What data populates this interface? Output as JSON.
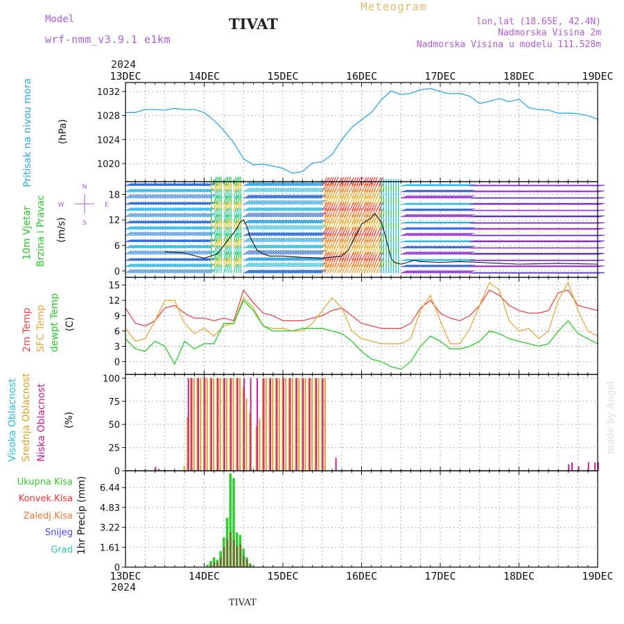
{
  "header": {
    "model_label": "Model",
    "model_name": "wrf-nmm_v3.9.1 e1km",
    "station_title": "TIVAT",
    "chart_kind": "Meteogram",
    "location": "lon,lat (18.65E, 42.4N)",
    "altitude": "Nadmorska Visina 2m",
    "model_altitude": "Nadmorska Visina u modelu 111.528m",
    "year": "2024",
    "footer": "TIVAT",
    "signature": "made by Angel"
  },
  "colors": {
    "pressure": "#29a9e6",
    "temp2m": "#ee4444",
    "sfc_temp": "#e8a838",
    "dewpoint": "#22cc22",
    "high_cloud": "#22c2e6",
    "mid_cloud": "#e0a020",
    "low_cloud": "#cc1a8c",
    "total_precip": "#33cc33",
    "convective": "#ee3333",
    "frozen": "#ee7733",
    "snow": "#4444ee",
    "graupel": "#22ccaa",
    "wind_label": "#22cc22",
    "wind_speed_line": "#111111"
  },
  "chart_data": [
    {
      "type": "line",
      "panel": "pressure",
      "ylabel_lines": [
        "Pritisak na nivou mora",
        "(hPa)"
      ],
      "x_ticks": [
        "13DEC",
        "14DEC",
        "15DEC",
        "16DEC",
        "17DEC",
        "18DEC",
        "19DEC"
      ],
      "xlim": [
        0,
        144
      ],
      "ylim": [
        1017,
        1033.5
      ],
      "yticks": [
        1020,
        1024,
        1028,
        1032
      ],
      "grid": true,
      "series": [
        {
          "x": [
            0,
            3,
            6,
            9,
            12,
            15,
            18,
            21,
            24,
            27,
            30,
            33,
            36,
            39,
            42,
            45,
            48,
            51,
            54,
            57,
            60,
            63,
            66,
            69,
            72,
            75,
            78,
            81,
            84,
            87,
            90,
            93,
            96,
            99,
            102,
            105,
            108,
            111,
            114,
            117,
            120,
            123,
            126,
            129,
            132,
            135,
            138,
            141,
            144
          ],
          "values": [
            1028.5,
            1028.5,
            1029.0,
            1029.0,
            1028.9,
            1029.2,
            1029.0,
            1029.0,
            1028.5,
            1027.2,
            1025.5,
            1023.5,
            1020.8,
            1019.8,
            1019.9,
            1019.6,
            1019.2,
            1018.4,
            1018.7,
            1020.1,
            1020.3,
            1021.5,
            1024.0,
            1026.0,
            1027.3,
            1028.5,
            1030.6,
            1032.1,
            1031.5,
            1031.7,
            1032.3,
            1032.5,
            1032.0,
            1031.6,
            1031.7,
            1031.2,
            1030.0,
            1030.4,
            1030.8,
            1030.3,
            1030.7,
            1029.3,
            1029.0,
            1028.9,
            1028.4,
            1028.4,
            1028.3,
            1028.0,
            1027.4
          ]
        }
      ]
    },
    {
      "type": "line",
      "panel": "wind",
      "ylabel_lines": [
        "10m Vjetar",
        "Brzina i Pravac",
        "(m/s)"
      ],
      "compass": [
        "N",
        "S",
        "W",
        "E"
      ],
      "ylim": [
        -1.5,
        21
      ],
      "yticks": [
        0,
        6,
        12,
        18
      ],
      "grid": true,
      "series": [
        {
          "name": "speed",
          "x": [
            12,
            18,
            24,
            28,
            30,
            32,
            34,
            35,
            36,
            37,
            38,
            40,
            42,
            44,
            48,
            54,
            60,
            66,
            68,
            70,
            72,
            75,
            76,
            78,
            79,
            80,
            81,
            82,
            84,
            86,
            88,
            90,
            96,
            102,
            108,
            114,
            120,
            126,
            132,
            138,
            144
          ],
          "values": [
            4.5,
            4.2,
            3.0,
            4.0,
            6.0,
            8.0,
            10.0,
            11.5,
            12.0,
            10.5,
            8.0,
            5.0,
            4.0,
            3.5,
            3.5,
            3.2,
            3.0,
            3.5,
            5.0,
            8.0,
            11.0,
            12.5,
            13.5,
            11.5,
            9.0,
            6.0,
            3.0,
            2.0,
            1.6,
            2.0,
            2.5,
            2.2,
            2.0,
            2.2,
            2.0,
            1.8,
            1.6,
            1.7,
            1.8,
            1.7,
            1.6
          ]
        }
      ]
    },
    {
      "type": "line",
      "panel": "temperature",
      "ylabel_lines": [
        "2m Temp",
        "SFC Temp",
        "dewpt Temp",
        "(C)"
      ],
      "ylim": [
        -2.5,
        16.5
      ],
      "yticks": [
        0,
        3,
        6,
        9,
        12,
        15
      ],
      "grid": true,
      "series": [
        {
          "name": "2m Temp",
          "x": [
            0,
            3,
            6,
            9,
            12,
            15,
            18,
            21,
            24,
            27,
            30,
            33,
            36,
            39,
            42,
            45,
            48,
            51,
            54,
            57,
            60,
            63,
            66,
            69,
            72,
            75,
            78,
            81,
            84,
            87,
            90,
            93,
            96,
            99,
            102,
            105,
            108,
            111,
            114,
            117,
            120,
            123,
            126,
            129,
            132,
            135,
            138,
            141,
            144
          ],
          "values": [
            10.5,
            7.5,
            7.0,
            8.0,
            10.5,
            11.0,
            9.5,
            8.5,
            8.5,
            8.0,
            8.5,
            8.0,
            14.0,
            11.5,
            9.5,
            9.0,
            8.0,
            8.0,
            8.0,
            8.5,
            9.0,
            10.0,
            10.5,
            9.0,
            7.5,
            7.0,
            6.5,
            6.5,
            6.5,
            7.5,
            10.5,
            12.0,
            9.5,
            8.5,
            8.0,
            9.0,
            11.0,
            14.0,
            13.0,
            11.0,
            10.0,
            9.5,
            9.5,
            10.0,
            13.5,
            14.0,
            11.0,
            10.5,
            10.0
          ]
        },
        {
          "name": "SFC Temp",
          "x": [
            0,
            3,
            6,
            9,
            12,
            15,
            18,
            21,
            24,
            27,
            30,
            33,
            36,
            39,
            42,
            45,
            48,
            51,
            54,
            57,
            60,
            63,
            66,
            69,
            72,
            75,
            78,
            81,
            84,
            87,
            90,
            93,
            96,
            99,
            102,
            105,
            108,
            111,
            114,
            117,
            120,
            123,
            126,
            129,
            132,
            135,
            138,
            141,
            144
          ],
          "values": [
            6.5,
            4.0,
            4.5,
            8.0,
            12.0,
            12.0,
            7.5,
            5.5,
            6.5,
            5.0,
            7.0,
            7.5,
            12.5,
            10.5,
            7.0,
            6.5,
            6.5,
            6.0,
            6.0,
            7.5,
            10.0,
            12.5,
            10.5,
            6.0,
            4.5,
            4.0,
            3.5,
            3.5,
            3.5,
            4.5,
            10.0,
            13.0,
            8.0,
            3.5,
            3.5,
            6.5,
            11.0,
            15.5,
            14.0,
            8.0,
            6.0,
            6.5,
            4.5,
            6.0,
            12.0,
            15.5,
            10.0,
            6.0,
            5.0
          ]
        },
        {
          "name": "dewpt Temp",
          "x": [
            0,
            3,
            6,
            9,
            12,
            15,
            18,
            21,
            24,
            27,
            30,
            33,
            36,
            39,
            42,
            45,
            48,
            51,
            54,
            57,
            60,
            63,
            66,
            69,
            72,
            75,
            78,
            81,
            84,
            87,
            90,
            93,
            96,
            99,
            102,
            105,
            108,
            111,
            114,
            117,
            120,
            123,
            126,
            129,
            132,
            135,
            138,
            141,
            144
          ],
          "values": [
            4.5,
            2.5,
            2.0,
            4.0,
            3.0,
            -0.5,
            4.0,
            2.5,
            3.5,
            3.5,
            7.5,
            7.5,
            12.0,
            10.0,
            7.0,
            6.0,
            6.0,
            6.0,
            6.5,
            6.5,
            6.5,
            6.0,
            5.5,
            4.0,
            2.0,
            0.5,
            0.0,
            -1.0,
            -1.5,
            0.0,
            3.0,
            5.0,
            4.0,
            2.5,
            2.5,
            3.0,
            4.0,
            6.0,
            5.5,
            4.5,
            4.0,
            3.5,
            3.0,
            3.5,
            6.0,
            8.0,
            5.5,
            4.5,
            3.5
          ]
        }
      ]
    },
    {
      "type": "bar",
      "panel": "cloud",
      "ylabel_lines": [
        "Visoka Oblacnost",
        "Srednja Oblacnost",
        "Niska Oblacnost",
        "(%)"
      ],
      "ylim": [
        0,
        104
      ],
      "yticks": [
        0,
        25,
        50,
        75,
        100
      ],
      "grid": true,
      "series": [
        {
          "name": "Srednja Oblacnost",
          "x": [
            18,
            19,
            20,
            21,
            22,
            23,
            24,
            25,
            26,
            27,
            28,
            29,
            30,
            31,
            32,
            33,
            34,
            35,
            36,
            37,
            38,
            40,
            41,
            42,
            43,
            44,
            45,
            46,
            47,
            48,
            49,
            50,
            51,
            52,
            53,
            54,
            55,
            56,
            57,
            58,
            59,
            60,
            61
          ],
          "values": [
            5,
            58,
            100,
            100,
            100,
            100,
            100,
            100,
            100,
            100,
            100,
            100,
            100,
            100,
            100,
            100,
            100,
            100,
            90,
            78,
            62,
            48,
            56,
            100,
            100,
            100,
            100,
            100,
            100,
            100,
            100,
            100,
            100,
            100,
            100,
            100,
            100,
            100,
            100,
            100,
            100,
            100,
            100
          ]
        },
        {
          "name": "Niska Oblacnost",
          "x": [
            9,
            10,
            19,
            20,
            22,
            24,
            26,
            28,
            30,
            32,
            34,
            36,
            38,
            40,
            42,
            44,
            46,
            48,
            50,
            52,
            54,
            56,
            58,
            60,
            64,
            135,
            136,
            138,
            141,
            143,
            144
          ],
          "values": [
            4,
            2,
            100,
            100,
            100,
            100,
            100,
            100,
            100,
            100,
            100,
            100,
            100,
            100,
            100,
            100,
            100,
            100,
            100,
            100,
            100,
            100,
            100,
            100,
            14,
            7,
            9,
            5,
            9,
            9,
            9
          ]
        },
        {
          "name": "Visoka Oblacnost",
          "x": [
            10,
            60
          ],
          "values": [
            1,
            1
          ]
        }
      ]
    },
    {
      "type": "bar",
      "panel": "precip",
      "ylabel": "1hr Precip (mm)",
      "ylim": [
        0,
        7.8
      ],
      "yticks": [
        0,
        1.61,
        3.22,
        4.83,
        6.44
      ],
      "ytick_labels": [
        "0",
        "1.61",
        "3.22",
        "4.83",
        "6.44"
      ],
      "grid": true,
      "legend": [
        "Ukupna Kisa",
        "Konvek.Kisa",
        "Zaledj.Kisa",
        "Snijeg",
        "Grad"
      ],
      "series": [
        {
          "name": "Ukupna Kisa",
          "x": [
            25,
            26,
            27,
            28,
            29,
            30,
            31,
            32,
            33,
            34,
            35,
            36,
            37,
            38,
            39
          ],
          "values": [
            0.2,
            0.5,
            0.8,
            0.6,
            1.3,
            2.4,
            4.0,
            7.6,
            7.2,
            2.8,
            2.6,
            1.5,
            0.8,
            0.3,
            0.1
          ]
        },
        {
          "name": "Konvek.Kisa",
          "x": [
            26,
            27,
            28,
            29,
            30,
            31,
            32,
            33,
            34,
            35,
            36,
            37,
            38,
            52
          ],
          "values": [
            0.2,
            0.4,
            0.4,
            0.8,
            1.6,
            2.3,
            2.8,
            2.2,
            1.7,
            1.8,
            0.9,
            0.6,
            0.2,
            0.05
          ]
        }
      ]
    }
  ]
}
